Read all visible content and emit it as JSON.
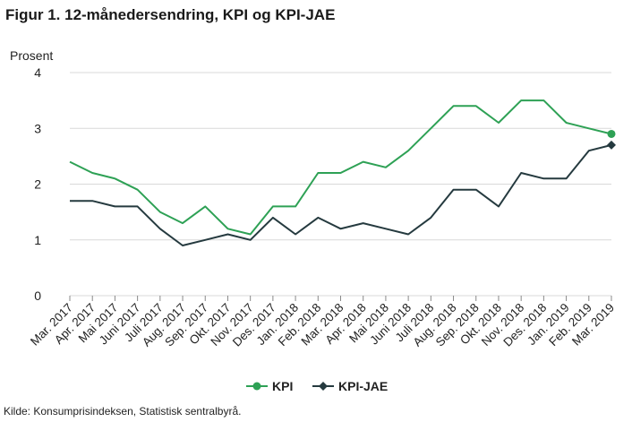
{
  "title": "Figur 1. 12-månedersendring, KPI og KPI-JAE",
  "source": "Kilde: Konsumprisindeksen, Statistisk sentralbyrå.",
  "colors": {
    "KPI": "#2ea155",
    "KPI-JAE": "#253a3f",
    "grid": "#d9d9d9"
  },
  "chart_data": {
    "type": "line",
    "ylabel": "Prosent",
    "xlabel": "",
    "ylim": [
      0,
      4
    ],
    "yticks": [
      0,
      1,
      2,
      3,
      4
    ],
    "grid": true,
    "legend": "bottom",
    "categories": [
      "Mar. 2017",
      "Apr. 2017",
      "Mai 2017",
      "Juni 2017",
      "Juli 2017",
      "Aug. 2017",
      "Sep. 2017",
      "Okt. 2017",
      "Nov. 2017",
      "Des. 2017",
      "Jan. 2018",
      "Feb. 2018",
      "Mar. 2018",
      "Apr. 2018",
      "Mai 2018",
      "Juni 2018",
      "Juli 2018",
      "Aug. 2018",
      "Sep. 2018",
      "Okt. 2018",
      "Nov. 2018",
      "Des. 2018",
      "Jan. 2019",
      "Feb. 2019",
      "Mar. 2019"
    ],
    "series": [
      {
        "name": "KPI",
        "marker": "circle",
        "values": [
          2.4,
          2.2,
          2.1,
          1.9,
          1.5,
          1.3,
          1.6,
          1.2,
          1.1,
          1.6,
          1.6,
          2.2,
          2.2,
          2.4,
          2.3,
          2.6,
          3.0,
          3.4,
          3.4,
          3.1,
          3.5,
          3.5,
          3.1,
          3.0,
          2.9
        ]
      },
      {
        "name": "KPI-JAE",
        "marker": "diamond",
        "values": [
          1.7,
          1.7,
          1.6,
          1.6,
          1.2,
          0.9,
          1.0,
          1.1,
          1.0,
          1.4,
          1.1,
          1.4,
          1.2,
          1.3,
          1.2,
          1.1,
          1.4,
          1.9,
          1.9,
          1.6,
          2.2,
          2.1,
          2.1,
          2.6,
          2.7
        ]
      }
    ]
  }
}
